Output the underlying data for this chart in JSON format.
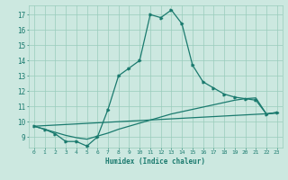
{
  "title": "",
  "xlabel": "Humidex (Indice chaleur)",
  "xlim": [
    -0.5,
    23.5
  ],
  "ylim": [
    8.3,
    17.6
  ],
  "yticks": [
    9,
    10,
    11,
    12,
    13,
    14,
    15,
    16,
    17
  ],
  "xticks": [
    0,
    1,
    2,
    3,
    4,
    5,
    6,
    7,
    8,
    9,
    10,
    11,
    12,
    13,
    14,
    15,
    16,
    17,
    18,
    19,
    20,
    21,
    22,
    23
  ],
  "background_color": "#cce8e0",
  "line_color": "#1a7a6e",
  "grid_color": "#99ccbb",
  "line1_x": [
    0,
    1,
    2,
    3,
    4,
    5,
    6,
    7,
    8,
    9,
    10,
    11,
    12,
    13,
    14,
    15,
    16,
    17,
    18,
    19,
    20,
    21,
    22,
    23
  ],
  "line1_y": [
    9.7,
    9.5,
    9.2,
    8.7,
    8.7,
    8.4,
    9.0,
    10.8,
    13.0,
    13.5,
    14.0,
    17.0,
    16.8,
    17.3,
    16.4,
    13.7,
    12.6,
    12.2,
    11.8,
    11.6,
    11.5,
    11.4,
    10.5,
    10.6
  ],
  "line2_x": [
    0,
    1,
    2,
    3,
    4,
    5,
    6,
    7,
    8,
    9,
    10,
    11,
    12,
    13,
    14,
    15,
    16,
    17,
    18,
    19,
    20,
    21,
    22,
    23
  ],
  "line2_y": [
    9.7,
    9.5,
    9.3,
    9.1,
    8.95,
    8.85,
    9.05,
    9.25,
    9.5,
    9.7,
    9.9,
    10.1,
    10.3,
    10.5,
    10.65,
    10.8,
    10.95,
    11.1,
    11.25,
    11.4,
    11.5,
    11.55,
    10.5,
    10.6
  ],
  "line3_x": [
    0,
    23
  ],
  "line3_y": [
    9.7,
    10.55
  ]
}
